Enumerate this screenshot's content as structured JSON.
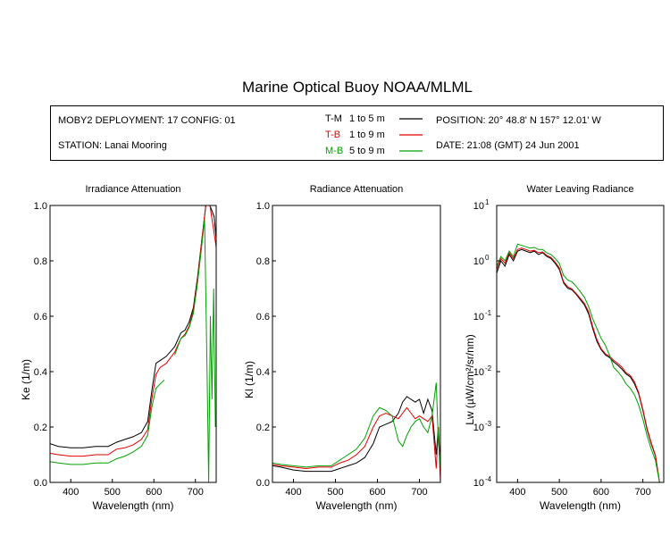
{
  "title": "Marine Optical Buoy NOAA/MLML",
  "info": {
    "deployment": "MOBY2 DEPLOYMENT: 17 CONFIG: 01",
    "station": "STATION: Lanai Mooring",
    "position": "POSITION: 20° 48.8' N   157° 12.01' W",
    "date": "DATE: 21:08 (GMT) 24 Jun 2001",
    "legend": [
      {
        "code": "T-M",
        "range": "1 to 5  m",
        "color": "#000000"
      },
      {
        "code": "T-B",
        "range": "1 to 9  m",
        "color": "#e00000"
      },
      {
        "code": "M-B",
        "range": "5 to 9  m",
        "color": "#00a000"
      }
    ]
  },
  "chart_data": [
    {
      "type": "line",
      "title": "Irradiance Attenuation",
      "xlabel": "Wavelength (nm)",
      "ylabel": "Ke  (1/m)",
      "xlim": [
        350,
        750
      ],
      "ylim": [
        0,
        1
      ],
      "xticks": [
        400,
        500,
        600,
        700
      ],
      "yticks": [
        "0.0",
        "0.2",
        "0.4",
        "0.6",
        "0.8",
        "1.0"
      ],
      "series": [
        {
          "name": "T-M",
          "color": "#000000",
          "x": [
            350,
            370,
            400,
            430,
            460,
            490,
            510,
            530,
            550,
            570,
            585,
            595,
            605,
            615,
            630,
            650,
            665,
            675,
            685,
            695,
            705,
            715,
            725,
            735,
            745,
            750
          ],
          "y": [
            0.14,
            0.13,
            0.125,
            0.125,
            0.13,
            0.13,
            0.145,
            0.155,
            0.165,
            0.18,
            0.22,
            0.33,
            0.43,
            0.44,
            0.455,
            0.49,
            0.54,
            0.55,
            0.58,
            0.63,
            0.74,
            0.87,
            1.0,
            1.0,
            0.96,
            0.88
          ]
        },
        {
          "name": "T-B",
          "color": "#e00000",
          "x": [
            350,
            370,
            400,
            430,
            460,
            490,
            510,
            530,
            550,
            570,
            585,
            595,
            605,
            615,
            630,
            650,
            665,
            675,
            685,
            695,
            705,
            715,
            725,
            735,
            745,
            750
          ],
          "y": [
            0.105,
            0.1,
            0.095,
            0.095,
            0.1,
            0.1,
            0.12,
            0.125,
            0.135,
            0.155,
            0.19,
            0.3,
            0.39,
            0.415,
            0.43,
            0.47,
            0.52,
            0.535,
            0.565,
            0.62,
            0.73,
            0.87,
            1.0,
            1.0,
            0.9,
            0.85
          ]
        },
        {
          "name": "M-B",
          "color": "#00a000",
          "x": [
            350,
            370,
            400,
            430,
            460,
            490,
            510,
            530,
            550,
            570,
            585,
            595,
            605,
            615,
            625
          ],
          "y": [
            0.075,
            0.07,
            0.065,
            0.065,
            0.07,
            0.07,
            0.085,
            0.095,
            0.11,
            0.13,
            0.17,
            0.27,
            0.34,
            0.355,
            0.37
          ]
        },
        {
          "name": "M-B",
          "color": "#00a000",
          "x": [
            650,
            665,
            675,
            685,
            695,
            705,
            715,
            722,
            728,
            732,
            736,
            740,
            744,
            748
          ],
          "y": [
            0.46,
            0.52,
            0.53,
            0.56,
            0.61,
            0.72,
            0.85,
            0.95,
            0.4,
            0.0,
            0.6,
            0.3,
            0.7,
            0.2
          ]
        }
      ]
    },
    {
      "type": "line",
      "title": "Radiance Attenuation",
      "xlabel": "Wavelength (nm)",
      "ylabel": "Kl  (1/m)",
      "xlim": [
        350,
        750
      ],
      "ylim": [
        0,
        1
      ],
      "xticks": [
        400,
        500,
        600,
        700
      ],
      "yticks": [
        "0.0",
        "0.2",
        "0.4",
        "0.6",
        "0.8",
        "1.0"
      ],
      "series": [
        {
          "name": "T-M",
          "color": "#000000",
          "x": [
            350,
            370,
            400,
            430,
            460,
            490,
            510,
            530,
            550,
            570,
            590,
            605,
            620,
            635,
            650,
            660,
            670,
            680,
            690,
            700,
            710,
            720,
            730,
            740,
            745,
            750
          ],
          "y": [
            0.06,
            0.055,
            0.045,
            0.04,
            0.04,
            0.04,
            0.05,
            0.06,
            0.07,
            0.09,
            0.14,
            0.2,
            0.21,
            0.22,
            0.25,
            0.29,
            0.31,
            0.3,
            0.29,
            0.3,
            0.25,
            0.3,
            0.26,
            0.1,
            0.2,
            0.05
          ]
        },
        {
          "name": "T-B",
          "color": "#e00000",
          "x": [
            350,
            370,
            400,
            430,
            460,
            490,
            510,
            530,
            550,
            570,
            590,
            605,
            620,
            635,
            650,
            660,
            670,
            680,
            690,
            700,
            710,
            720,
            730,
            740,
            745,
            750
          ],
          "y": [
            0.065,
            0.06,
            0.055,
            0.05,
            0.055,
            0.055,
            0.07,
            0.08,
            0.1,
            0.13,
            0.2,
            0.24,
            0.25,
            0.24,
            0.23,
            0.25,
            0.27,
            0.25,
            0.23,
            0.24,
            0.23,
            0.22,
            0.24,
            0.05,
            0.2,
            0.0
          ]
        },
        {
          "name": "M-B",
          "color": "#00a000",
          "x": [
            350,
            370,
            400,
            430,
            460,
            490,
            510,
            530,
            550,
            570,
            590,
            605,
            620,
            635,
            650,
            660,
            670,
            680,
            690,
            700,
            710,
            720,
            730,
            740,
            745,
            750
          ],
          "y": [
            0.07,
            0.065,
            0.06,
            0.055,
            0.06,
            0.06,
            0.08,
            0.1,
            0.12,
            0.16,
            0.24,
            0.27,
            0.26,
            0.24,
            0.15,
            0.13,
            0.17,
            0.2,
            0.22,
            0.23,
            0.2,
            0.18,
            0.24,
            0.36,
            0.15,
            0.05
          ]
        }
      ]
    },
    {
      "type": "line",
      "title": "Water Leaving Radiance",
      "xlabel": "Wavelength (nm)",
      "ylabel": "Lw  (µW/cm²/sr/nm)",
      "scale": "log",
      "xlim": [
        350,
        750
      ],
      "ylim": [
        0.0001,
        10
      ],
      "xticks": [
        400,
        500,
        600,
        700
      ],
      "ytick_exponents": [
        -4,
        -3,
        -2,
        -1,
        0,
        1
      ],
      "series": [
        {
          "name": "T-M",
          "color": "#000000",
          "x": [
            350,
            360,
            370,
            380,
            390,
            400,
            410,
            420,
            430,
            440,
            450,
            460,
            470,
            480,
            490,
            500,
            510,
            520,
            530,
            540,
            550,
            560,
            570,
            580,
            590,
            600,
            610,
            620,
            630,
            640,
            650,
            660,
            670,
            680,
            690,
            700,
            710,
            720,
            730,
            740,
            745
          ],
          "y": [
            0.6,
            1.0,
            0.8,
            1.3,
            1.0,
            1.5,
            1.6,
            1.5,
            1.4,
            1.5,
            1.3,
            1.4,
            1.2,
            1.1,
            0.9,
            0.7,
            0.4,
            0.32,
            0.3,
            0.25,
            0.2,
            0.16,
            0.11,
            0.06,
            0.035,
            0.025,
            0.02,
            0.018,
            0.015,
            0.013,
            0.011,
            0.009,
            0.008,
            0.006,
            0.004,
            0.002,
            0.0009,
            0.0005,
            0.0003,
            0.0001,
            0.0001
          ]
        },
        {
          "name": "T-B",
          "color": "#e00000",
          "x": [
            350,
            360,
            370,
            380,
            390,
            400,
            410,
            420,
            430,
            440,
            450,
            460,
            470,
            480,
            490,
            500,
            510,
            520,
            530,
            540,
            550,
            560,
            570,
            580,
            590,
            600,
            610,
            620,
            630,
            640,
            650,
            660,
            670,
            680,
            690,
            700,
            710,
            720,
            730,
            740,
            745
          ],
          "y": [
            0.7,
            1.1,
            0.9,
            1.4,
            1.1,
            1.6,
            1.7,
            1.6,
            1.5,
            1.55,
            1.4,
            1.45,
            1.25,
            1.15,
            0.95,
            0.75,
            0.42,
            0.34,
            0.31,
            0.26,
            0.21,
            0.17,
            0.12,
            0.065,
            0.038,
            0.026,
            0.021,
            0.019,
            0.016,
            0.014,
            0.012,
            0.0095,
            0.0085,
            0.0065,
            0.0042,
            0.0021,
            0.00095,
            0.00052,
            0.00031,
            0.0001,
            0.0001
          ]
        },
        {
          "name": "M-B",
          "color": "#00a000",
          "x": [
            350,
            360,
            370,
            380,
            390,
            400,
            410,
            420,
            430,
            440,
            450,
            460,
            470,
            480,
            490,
            500,
            510,
            520,
            530,
            540,
            550,
            560,
            570,
            580,
            590,
            600,
            610,
            620,
            630,
            640,
            650,
            660,
            670,
            680,
            690,
            700,
            710,
            720,
            730,
            740,
            745
          ],
          "y": [
            0.8,
            1.2,
            1.0,
            1.5,
            1.2,
            2.0,
            1.9,
            1.8,
            1.7,
            1.75,
            1.6,
            1.6,
            1.4,
            1.3,
            1.1,
            0.9,
            0.55,
            0.45,
            0.42,
            0.35,
            0.28,
            0.22,
            0.15,
            0.09,
            0.06,
            0.04,
            0.03,
            0.02,
            0.012,
            0.01,
            0.008,
            0.006,
            0.005,
            0.0038,
            0.0025,
            0.0014,
            0.0007,
            0.0004,
            0.00025,
            0.0001,
            0.0001
          ]
        }
      ]
    }
  ]
}
